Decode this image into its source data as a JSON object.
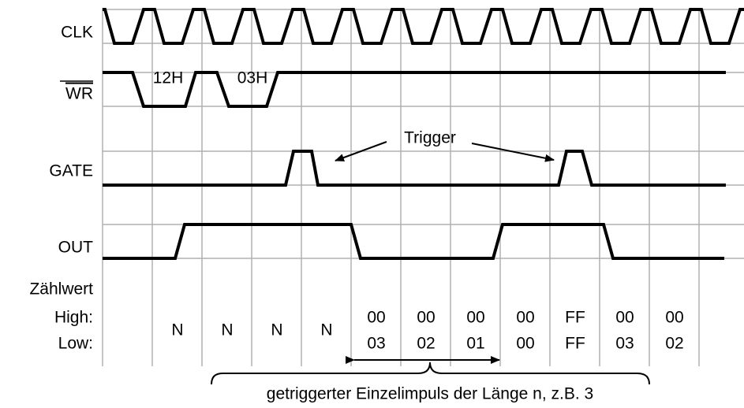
{
  "signals": [
    "CLK",
    "WR",
    "GATE",
    "OUT"
  ],
  "bus_labels": [
    "12H",
    "03H"
  ],
  "annotation": "Trigger",
  "counter": {
    "label": "Zählwert",
    "high_label": "High:",
    "low_label": "Low:",
    "single": [
      "N",
      "N",
      "N",
      "N"
    ],
    "pairs": [
      {
        "high": "00",
        "low": "03"
      },
      {
        "high": "00",
        "low": "02"
      },
      {
        "high": "00",
        "low": "01"
      },
      {
        "high": "00",
        "low": "00"
      },
      {
        "high": "FF",
        "low": "FF"
      },
      {
        "high": "00",
        "low": "03"
      },
      {
        "high": "00",
        "low": "02"
      }
    ]
  },
  "caption": "getriggerter Einzelimpuls der Länge n, z.B. 3"
}
